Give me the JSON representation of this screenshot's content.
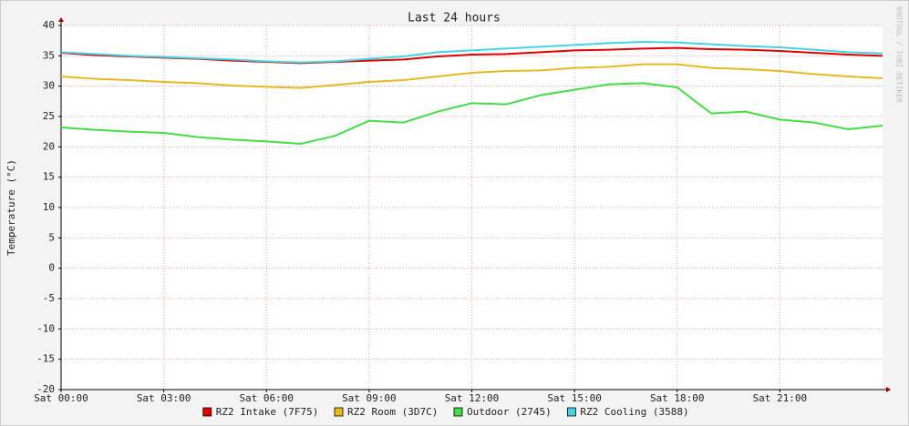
{
  "chart_data": {
    "type": "line",
    "title": "Last 24 hours",
    "y_label": "Temperature (°C)",
    "watermark": "RRDTOOL / TOBI OETIKER",
    "x": [
      0,
      1,
      2,
      3,
      4,
      5,
      6,
      7,
      8,
      9,
      10,
      11,
      12,
      13,
      14,
      15,
      16,
      17,
      18,
      19,
      20,
      21,
      22,
      23,
      24
    ],
    "xlim": [
      0,
      24
    ],
    "xticks": [
      {
        "value": 0,
        "label": "Sat 00:00"
      },
      {
        "value": 3,
        "label": "Sat 03:00"
      },
      {
        "value": 6,
        "label": "Sat 06:00"
      },
      {
        "value": 9,
        "label": "Sat 09:00"
      },
      {
        "value": 12,
        "label": "Sat 12:00"
      },
      {
        "value": 15,
        "label": "Sat 15:00"
      },
      {
        "value": 18,
        "label": "Sat 18:00"
      },
      {
        "value": 21,
        "label": "Sat 21:00"
      }
    ],
    "ylim": [
      -20,
      40
    ],
    "yticks": [
      -20,
      -15,
      -10,
      -5,
      0,
      5,
      10,
      15,
      20,
      25,
      30,
      35,
      40
    ],
    "grid": true,
    "series": [
      {
        "name": "RZ2 Intake (7F75)",
        "color": "#e00000",
        "values": [
          35.5,
          35.1,
          34.9,
          34.7,
          34.5,
          34.2,
          34.0,
          33.8,
          34.0,
          34.2,
          34.4,
          34.9,
          35.2,
          35.3,
          35.6,
          35.9,
          36.0,
          36.2,
          36.3,
          36.1,
          36.0,
          35.8,
          35.5,
          35.2,
          35.0
        ]
      },
      {
        "name": "RZ2 Room (3D7C)",
        "color": "#e8b820",
        "values": [
          31.6,
          31.2,
          31.0,
          30.7,
          30.5,
          30.1,
          29.9,
          29.7,
          30.2,
          30.7,
          31.0,
          31.6,
          32.2,
          32.5,
          32.6,
          33.0,
          33.2,
          33.6,
          33.6,
          33.0,
          32.8,
          32.5,
          32.0,
          31.6,
          31.3
        ]
      },
      {
        "name": "Outdoor (2745)",
        "color": "#44dd44",
        "values": [
          23.2,
          22.8,
          22.5,
          22.3,
          21.6,
          21.2,
          20.9,
          20.5,
          21.8,
          24.3,
          24.0,
          25.8,
          27.2,
          27.0,
          28.5,
          29.4,
          30.3,
          30.5,
          29.8,
          25.5,
          25.8,
          24.5,
          24.0,
          22.9,
          23.5
        ]
      },
      {
        "name": "RZ2 Cooling (3588)",
        "color": "#44d4e4",
        "values": [
          35.6,
          35.3,
          35.0,
          34.8,
          34.6,
          34.4,
          34.1,
          33.9,
          34.1,
          34.5,
          34.9,
          35.6,
          35.9,
          36.2,
          36.5,
          36.8,
          37.1,
          37.3,
          37.2,
          36.9,
          36.6,
          36.4,
          36.0,
          35.6,
          35.4
        ]
      }
    ]
  }
}
